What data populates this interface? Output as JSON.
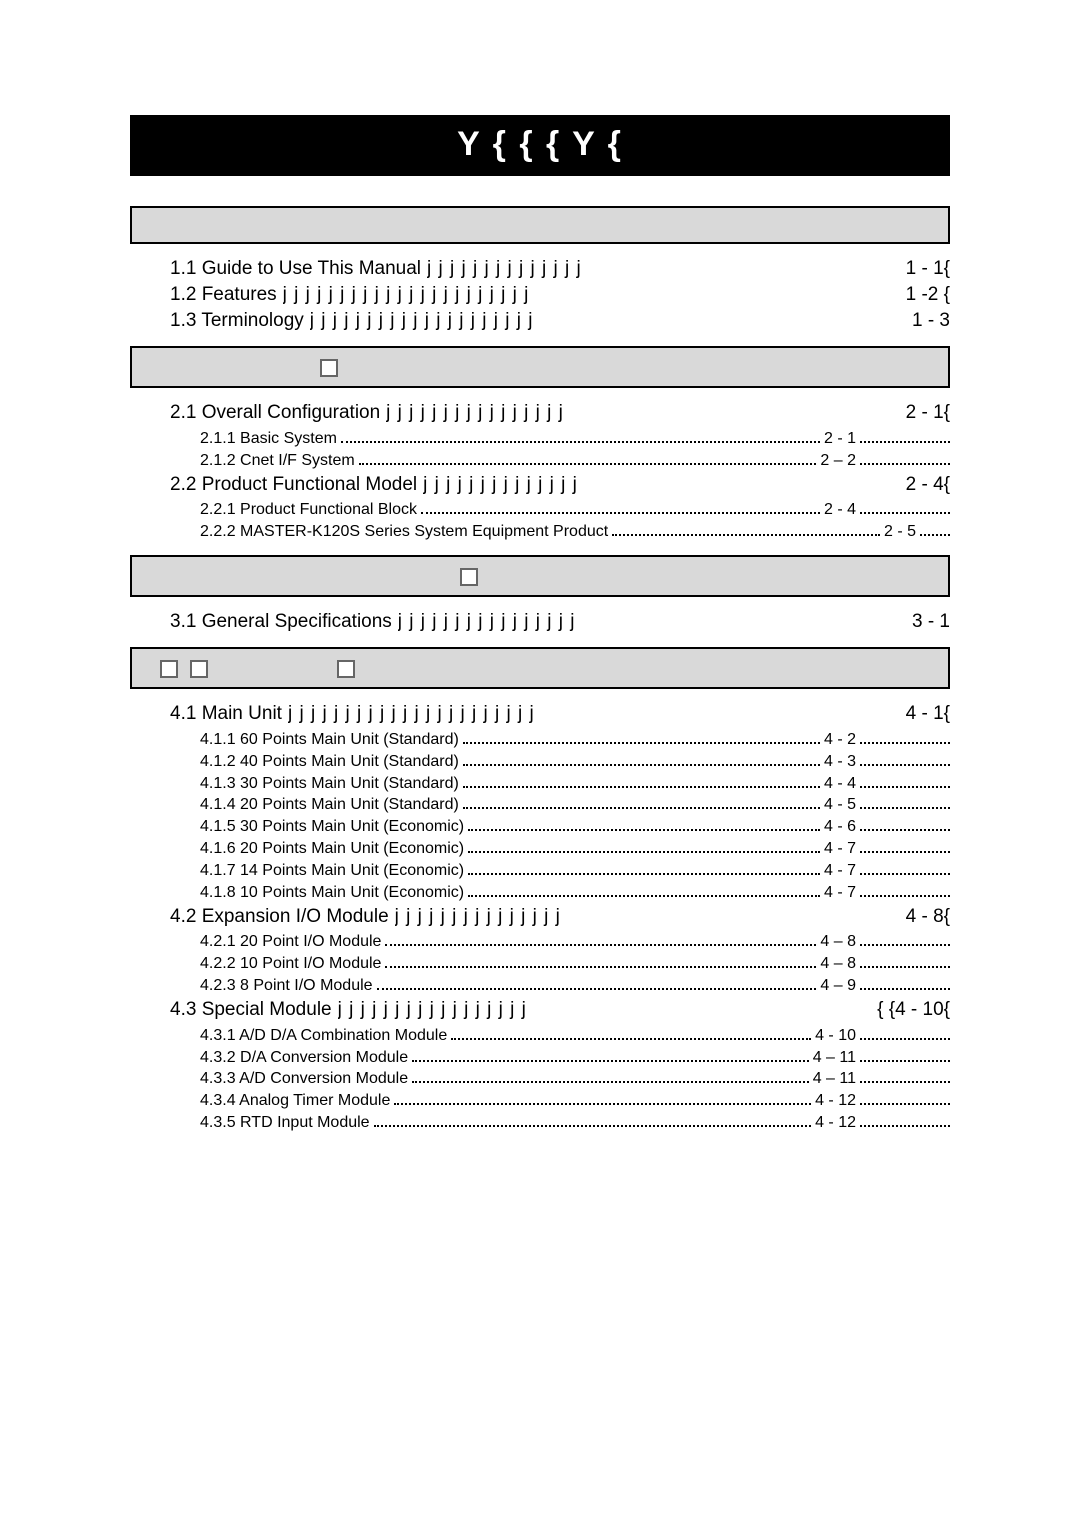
{
  "title_bar": "Y {        { { Y {",
  "chapter1": {
    "sections": [
      {
        "label": "1.1 Guide to Use This Manual",
        "fill": "j j j j j j j j j j j j j j",
        "page": "1 - 1{"
      },
      {
        "label": "1.2 Features",
        "fill": "j j j j j j j j j j j j j j j j j j j j j j",
        "page": "1 -2 {"
      },
      {
        "label": "1.3 Terminology",
        "fill": "j j j j j j j j j j j j j j j j j j j j",
        "page": "1 - 3"
      }
    ]
  },
  "chapter2": {
    "sections": [
      {
        "label": "2.1 Overall Configuration",
        "fill": "j j j j j j j j j j j j j j j j",
        "page": "2 - 1{",
        "subs": [
          {
            "label": "2.1.1 Basic System",
            "page": "2 - 1",
            "trail": true
          },
          {
            "label": "2.1.2 Cnet I/F System",
            "page": "2 – 2",
            "trail": true
          }
        ]
      },
      {
        "label": "2.2 Product Functional Model",
        "fill": "j j j j j j j j j j j j j j",
        "page": "2 - 4{",
        "subs": [
          {
            "label": "2.2.1 Product Functional Block",
            "page": "2 - 4",
            "trail": true
          },
          {
            "label": "2.2.2 MASTER-K120S Series System Equipment Product",
            "page": "2 - 5",
            "trail": false,
            "short_trail": true
          }
        ]
      }
    ]
  },
  "chapter3": {
    "sections": [
      {
        "label": "3.1 General Specifications",
        "fill": "j j j j j j j j j j j j j j j j",
        "page": "3 - 1"
      }
    ]
  },
  "chapter4": {
    "sections": [
      {
        "label": "4.1 Main Unit",
        "fill": "j j j j j j j j j j j j j j j j j j j j j j",
        "page": "4 - 1{",
        "subs": [
          {
            "label": "4.1.1 60 Points Main Unit (Standard)",
            "page": "4 - 2",
            "trail": true
          },
          {
            "label": "4.1.2 40 Points Main Unit (Standard)",
            "page": "4 - 3",
            "trail": true
          },
          {
            "label": "4.1.3 30 Points Main Unit (Standard)",
            "page": "4 - 4",
            "trail": true
          },
          {
            "label": "4.1.4 20 Points Main Unit (Standard)",
            "page": "4 - 5",
            "trail": true
          },
          {
            "label": "4.1.5 30 Points Main Unit (Economic)",
            "page": "4 - 6",
            "trail": true
          },
          {
            "label": "4.1.6 20 Points Main Unit (Economic)",
            "page": "4 - 7",
            "trail": true
          },
          {
            "label": "4.1.7 14 Points Main Unit (Economic)",
            "page": "4 - 7",
            "trail": true
          },
          {
            "label": "4.1.8 10 Points Main Unit (Economic)",
            "page": "4 - 7",
            "trail": true
          }
        ]
      },
      {
        "label": "4.2 Expansion I/O Module",
        "fill": "j j j j j j j j j j j j j j j",
        "page": "4 - 8{",
        "subs": [
          {
            "label": "4.2.1 20 Point I/O Module",
            "page": "4 – 8",
            "trail": true
          },
          {
            "label": "4.2.2 10 Point I/O Module",
            "page": "4 – 8",
            "trail": true
          },
          {
            "label": "4.2.3 8 Point I/O Module",
            "page": "4 – 9",
            "trail": true
          }
        ]
      },
      {
        "label": "4.3 Special Module",
        "fill": "j j j j j j j j j j j j j j j j j",
        "page": "{ {4 - 10{",
        "subs": [
          {
            "label": "4.3.1 A/D D/A Combination Module",
            "page": "4 - 10",
            "trail": true
          },
          {
            "label": "4.3.2 D/A Conversion Module",
            "page": "4 – 11",
            "trail": true
          },
          {
            "label": "4.3.3 A/D Conversion Module",
            "page": "4 – 11",
            "trail": true
          },
          {
            "label": "4.3.4 Analog Timer Module",
            "page": "4 - 12",
            "trail": true
          },
          {
            "label": "4.3.5 RTD Input Module",
            "page": "4 - 12",
            "trail": true
          }
        ]
      }
    ]
  },
  "indent_checkbox_single": 170,
  "indent_checkbox_pair": 30,
  "indent_checkbox_pair_gap": 140,
  "trail_width_default": 90,
  "trail_width_short": 30
}
